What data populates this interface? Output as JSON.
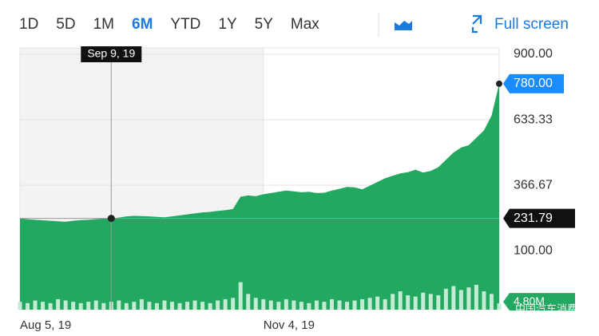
{
  "chart_data": {
    "type": "area",
    "nav": {
      "ranges": [
        "1D",
        "5D",
        "1M",
        "6M",
        "YTD",
        "1Y",
        "5Y",
        "Max"
      ],
      "active": 3,
      "full_screen": "Full screen"
    },
    "categories": [
      "Aug 5, 19",
      null,
      null,
      null,
      null,
      null,
      null,
      null,
      null,
      null,
      null,
      null,
      "Sep 9, 19",
      null,
      null,
      null,
      null,
      null,
      null,
      null,
      null,
      null,
      null,
      null,
      null,
      null,
      null,
      null,
      null,
      null,
      null,
      null,
      "Nov 4, 19",
      null,
      null,
      null,
      null,
      null,
      null,
      null,
      null,
      null,
      null,
      null,
      null,
      null,
      null,
      null,
      null,
      null,
      null,
      null,
      null,
      null,
      null,
      null,
      null,
      null,
      null,
      null,
      null,
      null,
      null,
      null
    ],
    "crosshair_index": 12,
    "series": [
      {
        "name": "Price",
        "color": "#22a861",
        "values": [
          232,
          228,
          226,
          224,
          222,
          220,
          218,
          222,
          225,
          226,
          229,
          231,
          231.79,
          235,
          240,
          242,
          241,
          240,
          238,
          236,
          240,
          244,
          248,
          252,
          256,
          258,
          262,
          265,
          270,
          320,
          325,
          322,
          330,
          335,
          340,
          345,
          342,
          338,
          340,
          335,
          336,
          345,
          352,
          360,
          358,
          350,
          365,
          380,
          395,
          405,
          415,
          420,
          430,
          418,
          425,
          440,
          470,
          500,
          520,
          530,
          560,
          590,
          650,
          780
        ],
        "value_labels": [
          null,
          null,
          null,
          null,
          null,
          null,
          null,
          null,
          null,
          null,
          null,
          null,
          null,
          null,
          null,
          null,
          null,
          null,
          null,
          null,
          null,
          null,
          null,
          null,
          null,
          null,
          null,
          null,
          null,
          null,
          null,
          null,
          null,
          null,
          null,
          null,
          null,
          null,
          null,
          null,
          null,
          null,
          null,
          null,
          null,
          null,
          null,
          null,
          null,
          null,
          null,
          null,
          null,
          null,
          null,
          null,
          null,
          null,
          null,
          null,
          null,
          null,
          null,
          "780.00"
        ]
      },
      {
        "name": "Volume",
        "color": "#c4ebd3",
        "axis": "y2",
        "values": [
          6,
          5,
          7,
          6,
          5,
          8,
          7,
          6,
          5,
          6,
          7,
          5,
          6,
          7,
          5,
          6,
          8,
          6,
          5,
          7,
          6,
          5,
          6,
          7,
          6,
          5,
          7,
          8,
          9,
          21,
          12,
          9,
          8,
          7,
          6,
          8,
          7,
          6,
          5,
          7,
          6,
          8,
          7,
          6,
          7,
          8,
          9,
          10,
          8,
          12,
          14,
          11,
          10,
          13,
          12,
          11,
          16,
          18,
          15,
          17,
          19,
          14,
          12,
          4.8
        ],
        "value_labels": [
          null,
          null,
          null,
          null,
          null,
          null,
          null,
          null,
          null,
          null,
          null,
          null,
          null,
          null,
          null,
          null,
          null,
          null,
          null,
          null,
          null,
          null,
          null,
          null,
          null,
          null,
          null,
          null,
          null,
          null,
          null,
          null,
          null,
          null,
          null,
          null,
          null,
          null,
          null,
          null,
          null,
          null,
          null,
          null,
          null,
          null,
          null,
          null,
          null,
          null,
          null,
          null,
          null,
          null,
          null,
          null,
          null,
          null,
          null,
          null,
          null,
          null,
          null,
          "4.80M"
        ]
      }
    ],
    "ylim": [
      -140,
      926
    ],
    "yticks": [
      {
        "value": 100,
        "label": "100.00"
      },
      366.67,
      633.33,
      {
        "value": 900,
        "label": "900.00"
      }
    ],
    "y2lim": [
      0,
      200
    ],
    "grid": true,
    "watermark": "中国汽车消费"
  }
}
